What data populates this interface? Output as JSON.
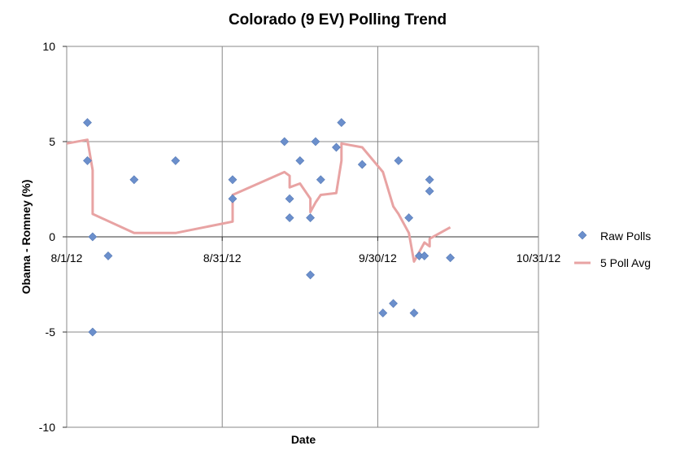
{
  "chart_data": {
    "type": "scatter",
    "title": "Colorado (9 EV) Polling Trend",
    "xlabel": "Date",
    "ylabel": "Obama - Romney (%)",
    "x_range": [
      "2012-08-01",
      "2012-10-31"
    ],
    "y_range": [
      -10,
      10
    ],
    "x_ticks": [
      {
        "date": "2012-08-01",
        "label": "8/1/12"
      },
      {
        "date": "2012-08-31",
        "label": "8/31/12"
      },
      {
        "date": "2012-09-30",
        "label": "9/30/12"
      },
      {
        "date": "2012-10-31",
        "label": "10/31/12"
      }
    ],
    "y_ticks": [
      -10,
      -5,
      0,
      5,
      10
    ],
    "y_tick_labels": [
      "-10",
      "-5",
      "0",
      "5",
      "10"
    ],
    "grid": true,
    "legend_position": "right",
    "series": [
      {
        "name": "Raw Polls",
        "kind": "scatter",
        "marker": "diamond",
        "color": "#6b8fcc",
        "points": [
          {
            "x": "2012-08-05",
            "y": 6
          },
          {
            "x": "2012-08-05",
            "y": 4
          },
          {
            "x": "2012-08-06",
            "y": 0
          },
          {
            "x": "2012-08-06",
            "y": -5
          },
          {
            "x": "2012-08-09",
            "y": -1
          },
          {
            "x": "2012-08-14",
            "y": 3
          },
          {
            "x": "2012-08-22",
            "y": 4
          },
          {
            "x": "2012-09-02",
            "y": 3
          },
          {
            "x": "2012-09-02",
            "y": 2
          },
          {
            "x": "2012-09-12",
            "y": 5
          },
          {
            "x": "2012-09-13",
            "y": 2
          },
          {
            "x": "2012-09-13",
            "y": 1
          },
          {
            "x": "2012-09-15",
            "y": 4
          },
          {
            "x": "2012-09-17",
            "y": 1
          },
          {
            "x": "2012-09-17",
            "y": -2
          },
          {
            "x": "2012-09-18",
            "y": 5
          },
          {
            "x": "2012-09-19",
            "y": 3
          },
          {
            "x": "2012-09-22",
            "y": 4.7
          },
          {
            "x": "2012-09-23",
            "y": 6
          },
          {
            "x": "2012-09-27",
            "y": 3.8
          },
          {
            "x": "2012-10-01",
            "y": -4
          },
          {
            "x": "2012-10-03",
            "y": -3.5
          },
          {
            "x": "2012-10-04",
            "y": 4
          },
          {
            "x": "2012-10-06",
            "y": 1
          },
          {
            "x": "2012-10-07",
            "y": -4
          },
          {
            "x": "2012-10-08",
            "y": -1
          },
          {
            "x": "2012-10-09",
            "y": -1
          },
          {
            "x": "2012-10-10",
            "y": 3
          },
          {
            "x": "2012-10-10",
            "y": 2.4
          },
          {
            "x": "2012-10-14",
            "y": -1.1
          }
        ]
      },
      {
        "name": "5 Poll Avg",
        "kind": "line",
        "color": "#e8a3a3",
        "points": [
          {
            "x": "2012-08-01",
            "y": 4.9
          },
          {
            "x": "2012-08-05",
            "y": 5.1
          },
          {
            "x": "2012-08-06",
            "y": 3.5
          },
          {
            "x": "2012-08-06",
            "y": 2.9
          },
          {
            "x": "2012-08-06",
            "y": 1.2
          },
          {
            "x": "2012-08-14",
            "y": 0.2
          },
          {
            "x": "2012-08-22",
            "y": 0.2
          },
          {
            "x": "2012-09-02",
            "y": 0.8
          },
          {
            "x": "2012-09-02",
            "y": 2.2
          },
          {
            "x": "2012-09-12",
            "y": 3.4
          },
          {
            "x": "2012-09-13",
            "y": 3.2
          },
          {
            "x": "2012-09-13",
            "y": 2.6
          },
          {
            "x": "2012-09-15",
            "y": 2.8
          },
          {
            "x": "2012-09-17",
            "y": 2.0
          },
          {
            "x": "2012-09-17",
            "y": 1.3
          },
          {
            "x": "2012-09-18",
            "y": 1.8
          },
          {
            "x": "2012-09-19",
            "y": 2.2
          },
          {
            "x": "2012-09-22",
            "y": 2.3
          },
          {
            "x": "2012-09-23",
            "y": 4.0
          },
          {
            "x": "2012-09-23",
            "y": 4.9
          },
          {
            "x": "2012-09-27",
            "y": 4.7
          },
          {
            "x": "2012-10-01",
            "y": 3.4
          },
          {
            "x": "2012-10-03",
            "y": 1.6
          },
          {
            "x": "2012-10-04",
            "y": 1.2
          },
          {
            "x": "2012-10-06",
            "y": 0.2
          },
          {
            "x": "2012-10-07",
            "y": -1.3
          },
          {
            "x": "2012-10-08",
            "y": -0.8
          },
          {
            "x": "2012-10-09",
            "y": -0.3
          },
          {
            "x": "2012-10-10",
            "y": -0.5
          },
          {
            "x": "2012-10-10",
            "y": -0.1
          },
          {
            "x": "2012-10-14",
            "y": 0.5
          }
        ]
      }
    ]
  }
}
